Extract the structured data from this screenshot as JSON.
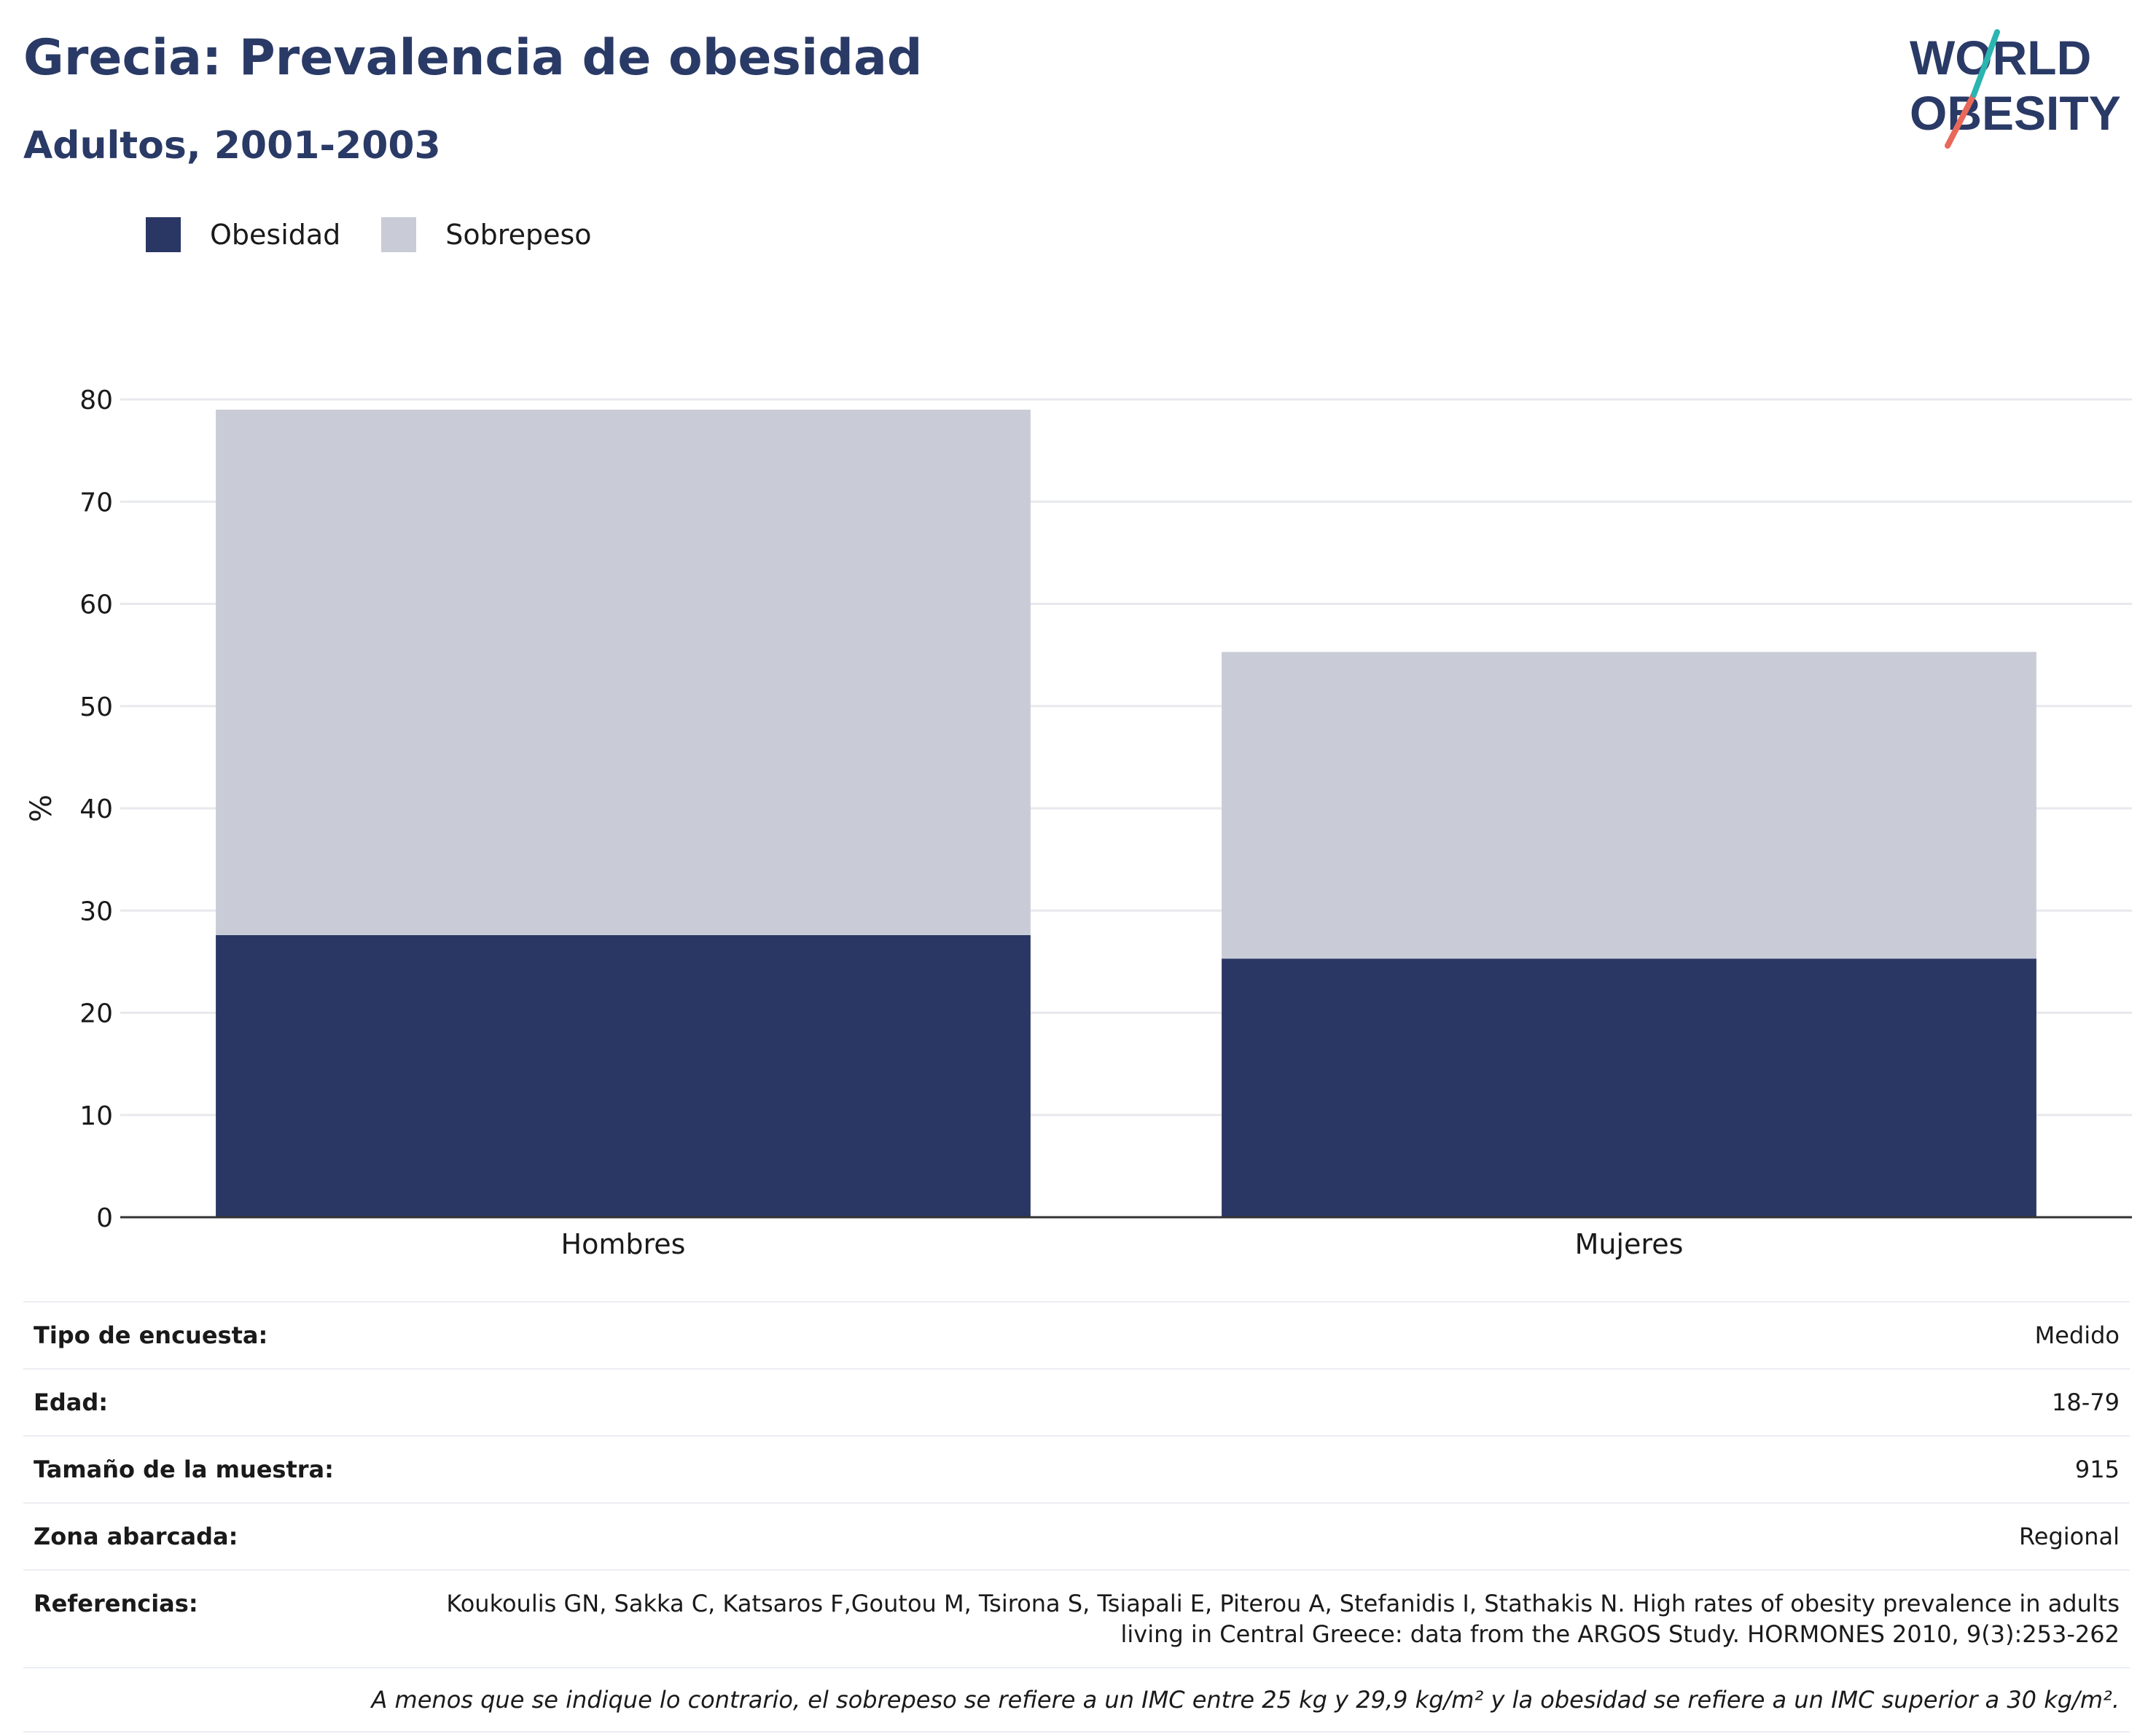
{
  "header": {
    "title": "Grecia: Prevalencia de obesidad",
    "subtitle": "Adultos, 2001-2003"
  },
  "logo": {
    "line1": "WORLD",
    "line2": "OBESITY",
    "colors": {
      "navy": "#2a3a66",
      "teal": "#2bb5b0",
      "coral": "#e8685a"
    }
  },
  "legend": [
    {
      "label": "Obesidad",
      "color": "#2a3764"
    },
    {
      "label": "Sobrepeso",
      "color": "#c9ccd7"
    }
  ],
  "chart_data": {
    "type": "bar",
    "stacked": true,
    "categories": [
      "Hombres",
      "Mujeres"
    ],
    "series": [
      {
        "name": "Obesidad",
        "values": [
          27.6,
          25.3
        ],
        "color": "#2a3764"
      },
      {
        "name": "Sobrepeso",
        "values": [
          51.4,
          30.0
        ],
        "color": "#c9ccd7"
      }
    ],
    "ylabel": "%",
    "ylim": [
      0,
      80
    ],
    "yticks": [
      0,
      10,
      20,
      30,
      40,
      50,
      60,
      70,
      80
    ],
    "grid": true,
    "legend_position": "top-left"
  },
  "info": {
    "rows": [
      {
        "label": "Tipo de encuesta:",
        "value": "Medido"
      },
      {
        "label": "Edad:",
        "value": "18-79"
      },
      {
        "label": "Tamaño de la muestra:",
        "value": "915"
      },
      {
        "label": "Zona abarcada:",
        "value": "Regional"
      },
      {
        "label": "Referencias:",
        "value": "Koukoulis GN, Sakka C, Katsaros F,Goutou M, Tsirona S, Tsiapali E, Piterou A, Stefanidis I, Stathakis N. High rates of obesity prevalence in adults living in Central Greece: data from the ARGOS Study. HORMONES 2010, 9(3):253-262"
      }
    ],
    "note": "A menos que se indique lo contrario, el sobrepeso se refiere a un IMC entre 25 kg y 29,9 kg/m² y la obesidad se refiere a un IMC superior a 30 kg/m²."
  }
}
